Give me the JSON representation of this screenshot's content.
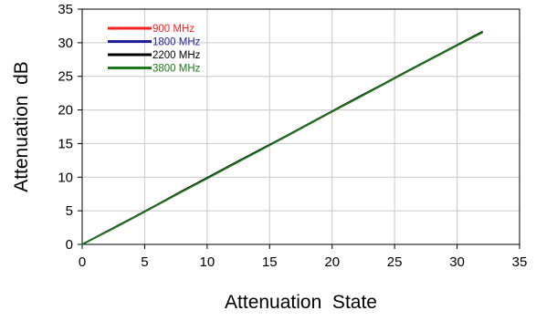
{
  "chart_data": {
    "type": "line",
    "title": "",
    "xlabel": "Attenuation  State",
    "ylabel": "Attenuation  dB",
    "xlim": [
      0,
      35
    ],
    "ylim": [
      0,
      35
    ],
    "x_ticks": [
      0,
      5,
      10,
      15,
      20,
      25,
      30,
      35
    ],
    "y_ticks": [
      0,
      5,
      10,
      15,
      20,
      25,
      30,
      35
    ],
    "grid": true,
    "legend_position": "top-left",
    "series": [
      {
        "name": "900 MHz",
        "color": "#ff2020",
        "x": [
          0,
          2,
          4,
          6,
          8,
          10,
          12,
          14,
          16,
          18,
          20,
          22,
          24,
          26,
          28,
          30,
          32
        ],
        "y": [
          0,
          1.9,
          3.85,
          5.85,
          7.85,
          9.85,
          11.8,
          13.8,
          15.75,
          17.75,
          19.75,
          21.75,
          23.7,
          25.7,
          27.65,
          29.6,
          31.5
        ]
      },
      {
        "name": "1800 MHz",
        "color": "#20209a",
        "x": [
          0,
          2,
          4,
          6,
          8,
          10,
          12,
          14,
          16,
          18,
          20,
          22,
          24,
          26,
          28,
          30,
          32
        ],
        "y": [
          0,
          1.95,
          3.9,
          5.9,
          7.9,
          9.9,
          11.85,
          13.85,
          15.8,
          17.8,
          19.8,
          21.8,
          23.75,
          25.75,
          27.7,
          29.65,
          31.6
        ]
      },
      {
        "name": "2200 MHz",
        "color": "#000000",
        "x": [
          0,
          2,
          4,
          6,
          8,
          10,
          12,
          14,
          16,
          18,
          20,
          22,
          24,
          26,
          28,
          30,
          32
        ],
        "y": [
          0,
          1.95,
          3.9,
          5.9,
          7.95,
          9.9,
          11.9,
          13.85,
          15.8,
          17.8,
          19.8,
          21.8,
          23.75,
          25.75,
          27.7,
          29.65,
          31.6
        ]
      },
      {
        "name": "3800 MHz",
        "color": "#1a7a1a",
        "x": [
          0,
          2,
          4,
          6,
          8,
          10,
          12,
          14,
          16,
          18,
          20,
          22,
          24,
          26,
          28,
          30,
          32
        ],
        "y": [
          0,
          1.9,
          3.85,
          5.85,
          7.85,
          9.8,
          11.8,
          13.75,
          15.75,
          17.75,
          19.75,
          21.7,
          23.7,
          25.7,
          27.65,
          29.6,
          31.5
        ]
      }
    ]
  }
}
